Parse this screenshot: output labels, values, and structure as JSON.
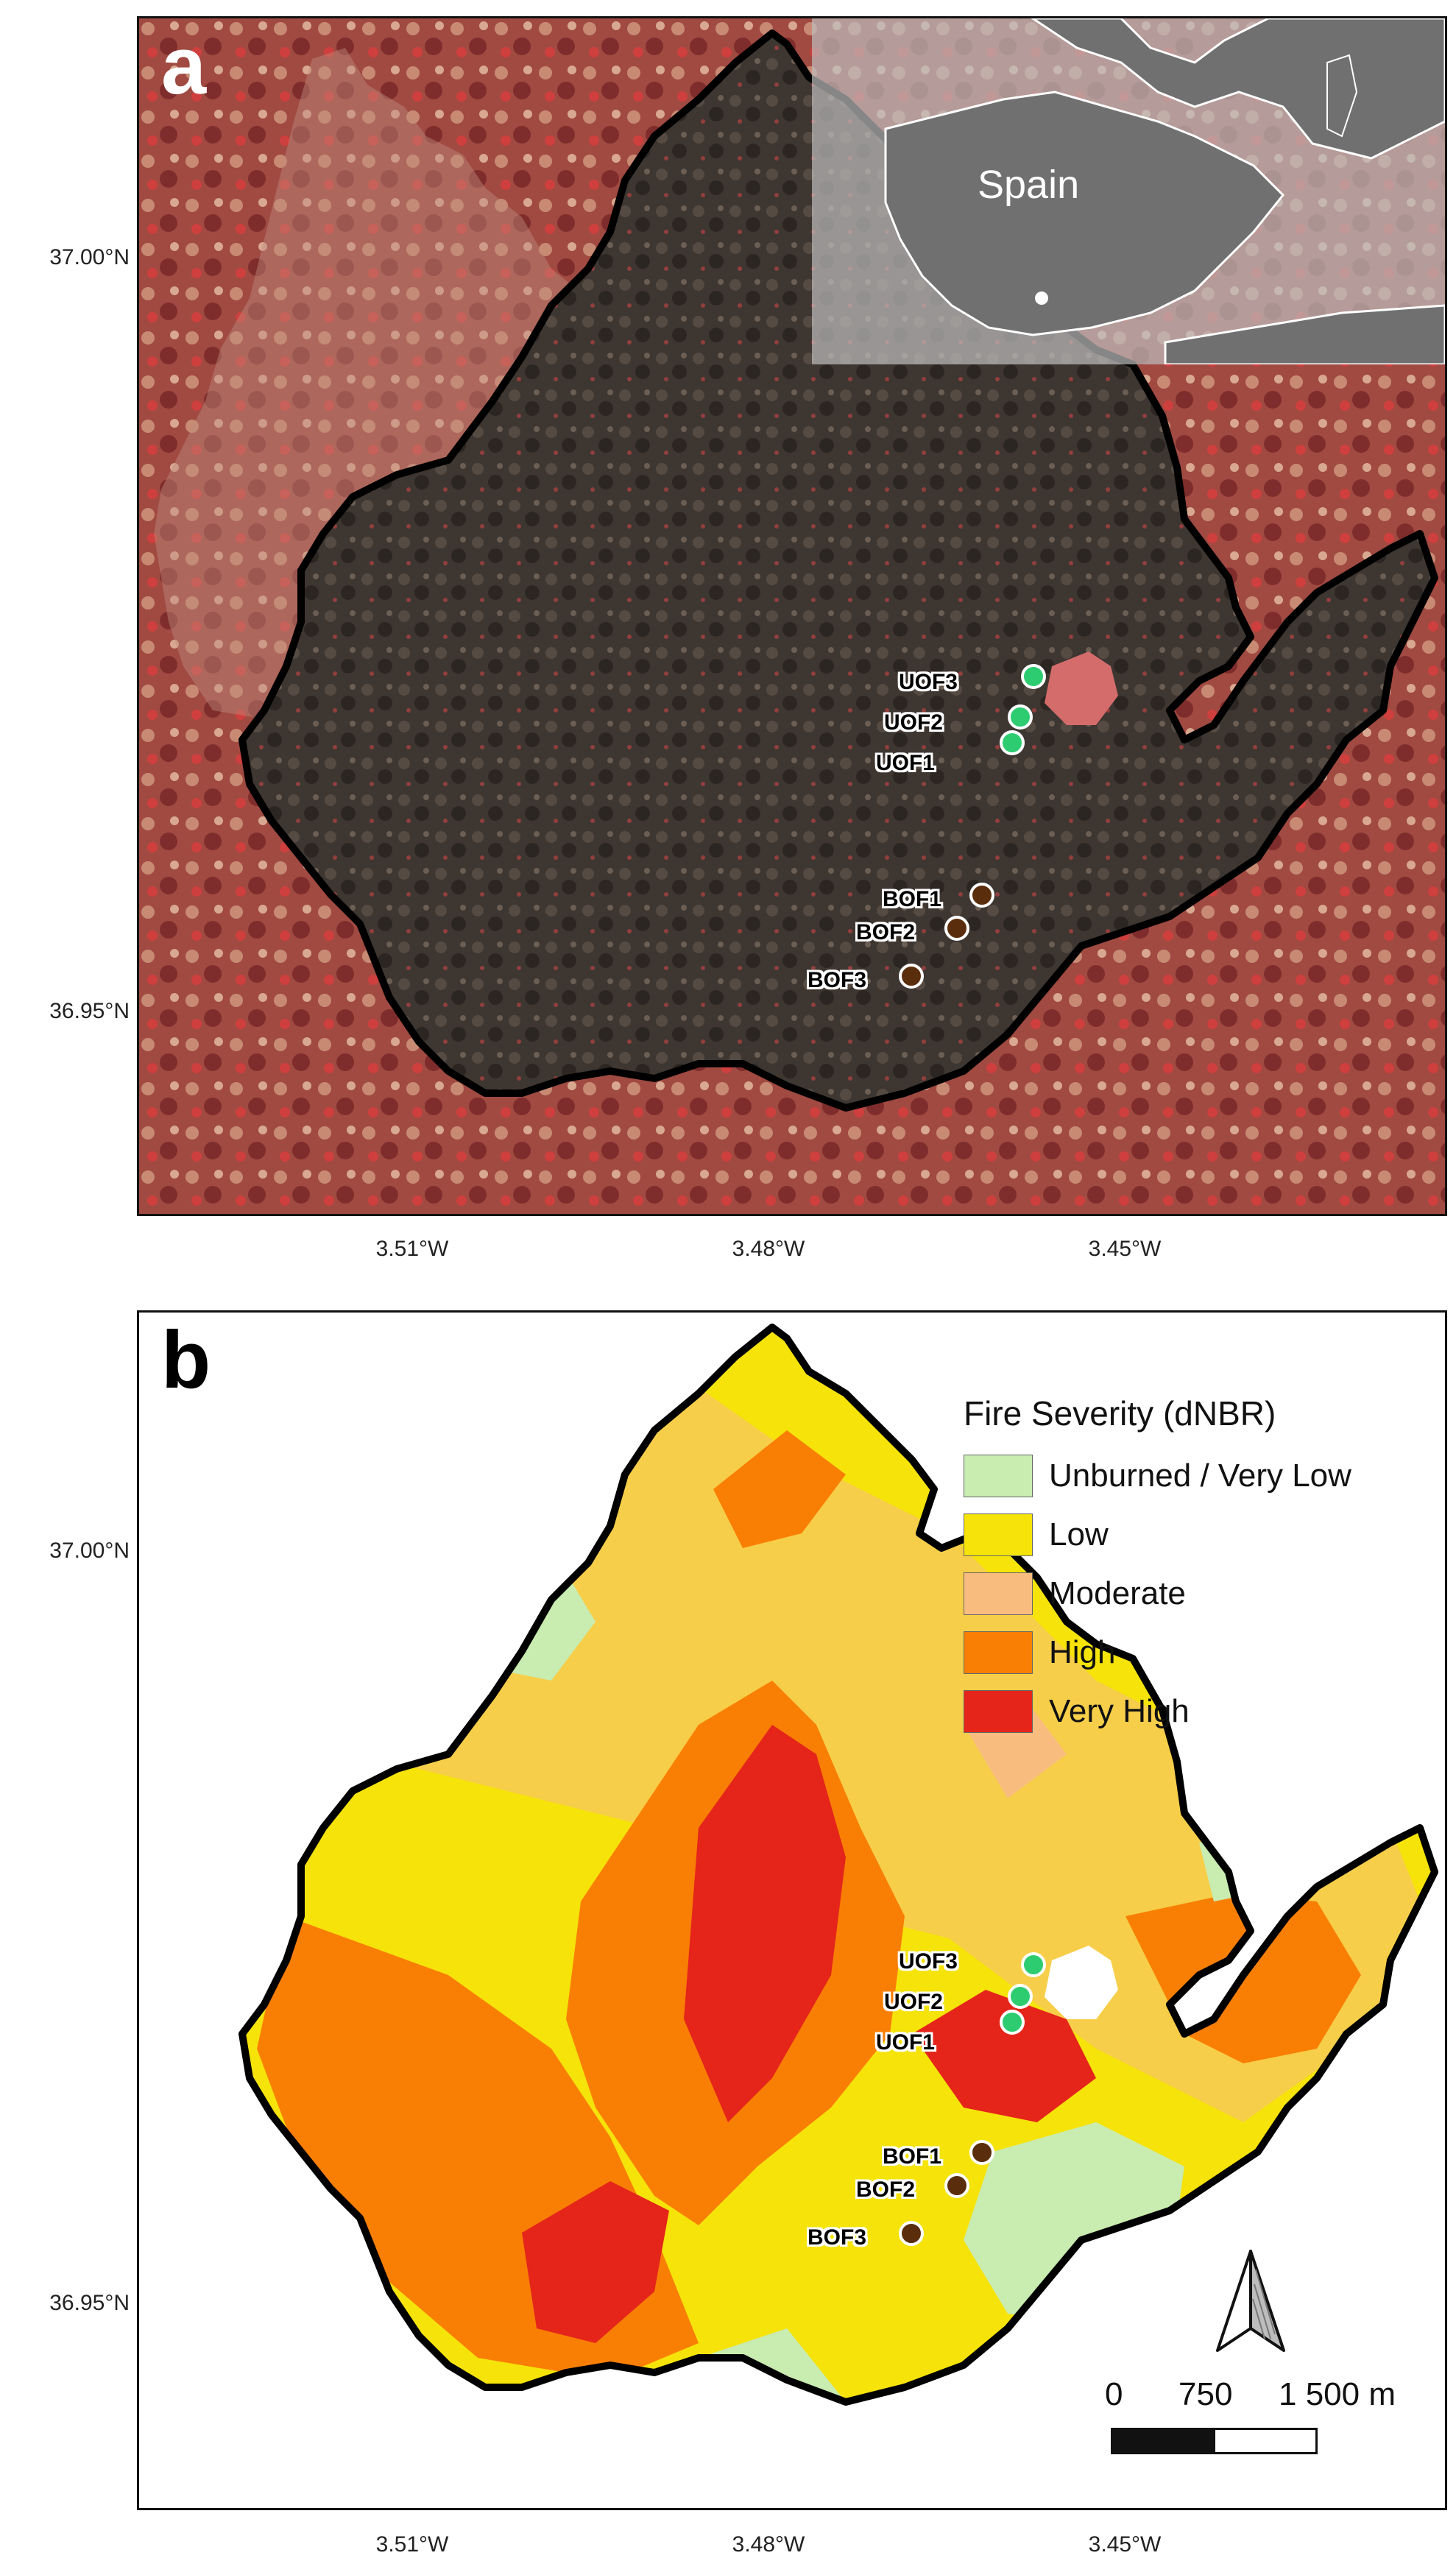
{
  "panels": {
    "a": {
      "label": "a"
    },
    "b": {
      "label": "b"
    }
  },
  "axes": {
    "y_ticks": [
      "37.00°N",
      "36.95°N"
    ],
    "x_ticks": [
      "3.51°W",
      "3.48°W",
      "3.45°W"
    ]
  },
  "inset": {
    "country_label": "Spain"
  },
  "sites": {
    "unburned": [
      "UOF3",
      "UOF2",
      "UOF1"
    ],
    "burned": [
      "BOF1",
      "BOF2",
      "BOF3"
    ]
  },
  "legend": {
    "title": "Fire Severity (dNBR)",
    "items": [
      {
        "label": "Unburned / Very Low",
        "color": "#c9ecb0"
      },
      {
        "label": "Low",
        "color": "#f5e30a"
      },
      {
        "label": "Moderate",
        "color": "#f8bd7e"
      },
      {
        "label": "High",
        "color": "#f97f04"
      },
      {
        "label": "Very High",
        "color": "#e5241a"
      }
    ]
  },
  "scale": {
    "labels": [
      "0",
      "750",
      "1 500 m"
    ]
  },
  "colors": {
    "unburned_site": "#2ecc71",
    "burned_site": "#5a2d0c",
    "perimeter": "#000000",
    "burned_area": "#3d3530",
    "unburned_terrain": "#a8473f"
  },
  "icons": [
    "north-arrow-icon"
  ]
}
